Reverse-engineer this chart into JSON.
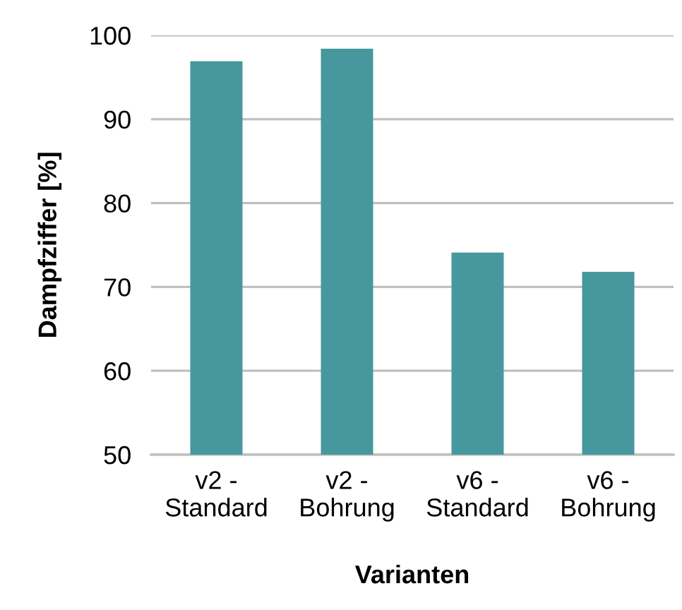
{
  "chart_data": {
    "type": "bar",
    "xlabel": "Varianten",
    "ylabel": "Dampfziffer [%]",
    "categories": [
      "v2 -\nStandard",
      "v2 -\nBohrung",
      "v6 -\nStandard",
      "v6 -\nBohrung"
    ],
    "values": [
      96.9,
      98.4,
      74.1,
      71.8
    ],
    "color": "#46989e",
    "ylim": [
      50,
      100
    ],
    "yticks": [
      50,
      60,
      70,
      80,
      90,
      100
    ],
    "grid": "y"
  }
}
